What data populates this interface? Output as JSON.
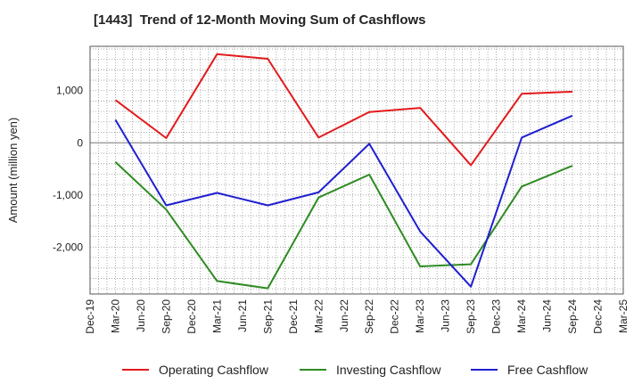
{
  "chart_data": {
    "type": "line",
    "title": "[1443]  Trend of 12-Month Moving Sum of Cashflows",
    "xlabel": "",
    "ylabel": "Amount (million yen)",
    "x": [
      "Dec-19",
      "Mar-20",
      "Jun-20",
      "Sep-20",
      "Dec-20",
      "Mar-21",
      "Jun-21",
      "Sep-21",
      "Dec-21",
      "Mar-22",
      "Jun-22",
      "Sep-22",
      "Dec-22",
      "Mar-23",
      "Jun-23",
      "Sep-23",
      "Dec-23",
      "Mar-24",
      "Jun-24",
      "Sep-24",
      "Dec-24",
      "Mar-25"
    ],
    "ylim": [
      -2900,
      1850
    ],
    "yticks": [
      1000,
      0,
      -1000,
      -2000
    ],
    "ytick_labels": [
      "1,000",
      "0",
      "-1,000",
      "-2,000"
    ],
    "grid": true,
    "legend_position": "bottom",
    "series": [
      {
        "name": "Operating Cashflow",
        "color": "#e31a1c",
        "points": [
          [
            "Mar-20",
            820
          ],
          [
            "Sep-20",
            90
          ],
          [
            "Mar-21",
            1700
          ],
          [
            "Sep-21",
            1610
          ],
          [
            "Mar-22",
            100
          ],
          [
            "Sep-22",
            590
          ],
          [
            "Mar-23",
            670
          ],
          [
            "Sep-23",
            -430
          ],
          [
            "Mar-24",
            940
          ],
          [
            "Sep-24",
            980
          ]
        ]
      },
      {
        "name": "Investing Cashflow",
        "color": "#2e8b22",
        "points": [
          [
            "Mar-20",
            -370
          ],
          [
            "Sep-20",
            -1280
          ],
          [
            "Mar-21",
            -2650
          ],
          [
            "Sep-21",
            -2790
          ],
          [
            "Mar-22",
            -1050
          ],
          [
            "Sep-22",
            -610
          ],
          [
            "Mar-23",
            -2370
          ],
          [
            "Sep-23",
            -2330
          ],
          [
            "Mar-24",
            -840
          ],
          [
            "Sep-24",
            -440
          ]
        ]
      },
      {
        "name": "Free Cashflow",
        "color": "#1f1fd0",
        "points": [
          [
            "Mar-20",
            440
          ],
          [
            "Sep-20",
            -1200
          ],
          [
            "Mar-21",
            -960
          ],
          [
            "Sep-21",
            -1200
          ],
          [
            "Mar-22",
            -950
          ],
          [
            "Sep-22",
            -20
          ],
          [
            "Mar-23",
            -1700
          ],
          [
            "Sep-23",
            -2760
          ],
          [
            "Mar-24",
            100
          ],
          [
            "Sep-24",
            520
          ]
        ]
      }
    ]
  }
}
